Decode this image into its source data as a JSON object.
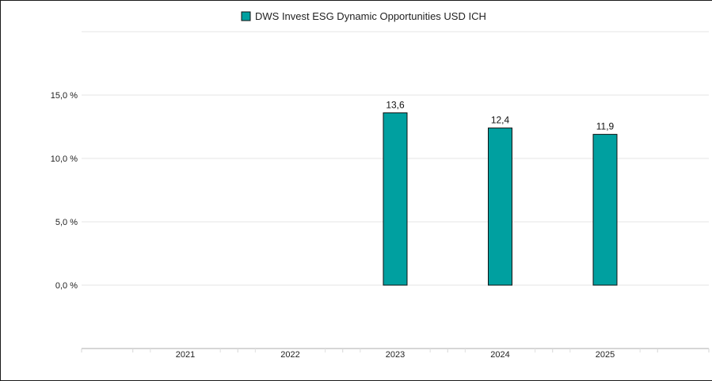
{
  "chart_data": {
    "type": "bar",
    "categories": [
      "2021",
      "2022",
      "2023",
      "2024",
      "2025"
    ],
    "series": [
      {
        "name": "DWS Invest ESG Dynamic Opportunities USD ICH",
        "values": [
          null,
          null,
          13.6,
          12.4,
          11.9
        ],
        "data_labels": [
          "",
          "",
          "13,6",
          "12,4",
          "11,9"
        ],
        "color": "#00a0a0"
      }
    ],
    "y_ticks": [
      0,
      5,
      10,
      15
    ],
    "y_tick_labels": [
      "0,0 %",
      "5,0 %",
      "10,0 %",
      "15,0 %"
    ],
    "ylim": [
      -5,
      20
    ],
    "grid": true,
    "legend_position": "top-center"
  }
}
